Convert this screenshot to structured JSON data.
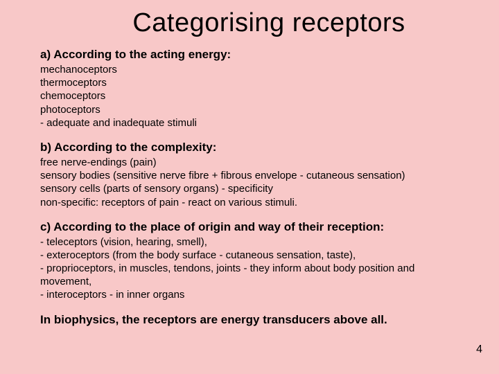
{
  "background_color": "#f8c8c8",
  "text_color": "#000000",
  "title": {
    "text": "Categorising receptors",
    "fontsize": 38,
    "weight": "normal",
    "align": "center"
  },
  "sections": [
    {
      "heading": "a) According to the acting energy:",
      "body": "mechanoceptors\nthermoceptors\nchemoceptors\nphotoceptors\n- adequate and inadequate stimuli"
    },
    {
      "heading": "b) According to the complexity:",
      "body": "free nerve-endings (pain)\nsensory bodies (sensitive nerve fibre + fibrous envelope - cutaneous sensation)\nsensory cells (parts of sensory organs) - specificity\nnon-specific: receptors of pain - react on various stimuli."
    },
    {
      "heading": "c) According to the place of origin and way of their reception:",
      "body": "- teleceptors (vision, hearing, smell),\n- exteroceptors (from the body surface - cutaneous sensation, taste),\n- proprioceptors, in muscles, tendons, joints - they inform about body position and\n    movement,\n-    interoceptors - in inner organs"
    }
  ],
  "conclusion": "In biophysics, the receptors are energy transducers above all.",
  "page_number": "4",
  "heading_fontsize": 17,
  "body_fontsize": 15,
  "font_family": "Arial"
}
